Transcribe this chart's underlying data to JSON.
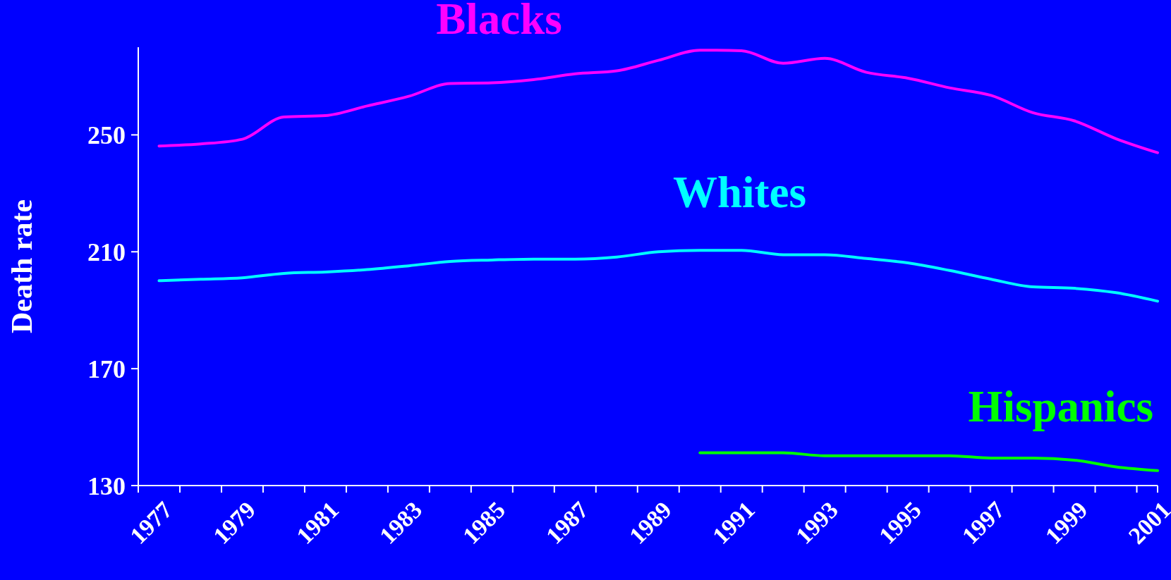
{
  "chart_data": {
    "type": "line",
    "ylabel": "Death rate",
    "categories": [
      "1977",
      null,
      "1979",
      null,
      "1981",
      null,
      "1983",
      null,
      "1985",
      null,
      "1987",
      null,
      "1989",
      null,
      "1991",
      null,
      "1993",
      null,
      "1995",
      null,
      "1997",
      null,
      "1999",
      null,
      "2001"
    ],
    "ylim": [
      130,
      280
    ],
    "yticks": [
      130,
      170,
      210,
      250
    ],
    "grid": false,
    "marker": "none",
    "line_style": "solid",
    "series": [
      {
        "name": "Blacks",
        "color": "#ff00ff",
        "values": [
          246.2,
          246.9,
          248.5,
          256.1,
          256.6,
          259.9,
          263.2,
          267.6,
          267.8,
          268.9,
          270.9,
          271.9,
          275.5,
          279.0,
          278.8,
          274.5,
          276.2,
          271.4,
          269.4,
          266.1,
          263.5,
          257.6,
          254.8,
          248.7,
          243.9
        ]
      },
      {
        "name": "Whites",
        "color": "#00ffff",
        "values": [
          200.1,
          200.6,
          201.1,
          202.6,
          203.1,
          203.9,
          205.2,
          206.7,
          207.2,
          207.5,
          207.5,
          208.2,
          210.0,
          210.5,
          210.5,
          209.0,
          209.0,
          207.7,
          206.2,
          203.6,
          200.6,
          198.0,
          197.5,
          196.0,
          193.1
        ]
      },
      {
        "name": "Hispanics",
        "color": "#00ff00",
        "values": [
          null,
          null,
          null,
          null,
          null,
          null,
          null,
          null,
          null,
          null,
          null,
          null,
          null,
          141.2,
          141.2,
          141.2,
          140.2,
          140.2,
          140.2,
          140.2,
          139.4,
          139.4,
          138.7,
          136.4,
          135.1
        ]
      }
    ]
  }
}
